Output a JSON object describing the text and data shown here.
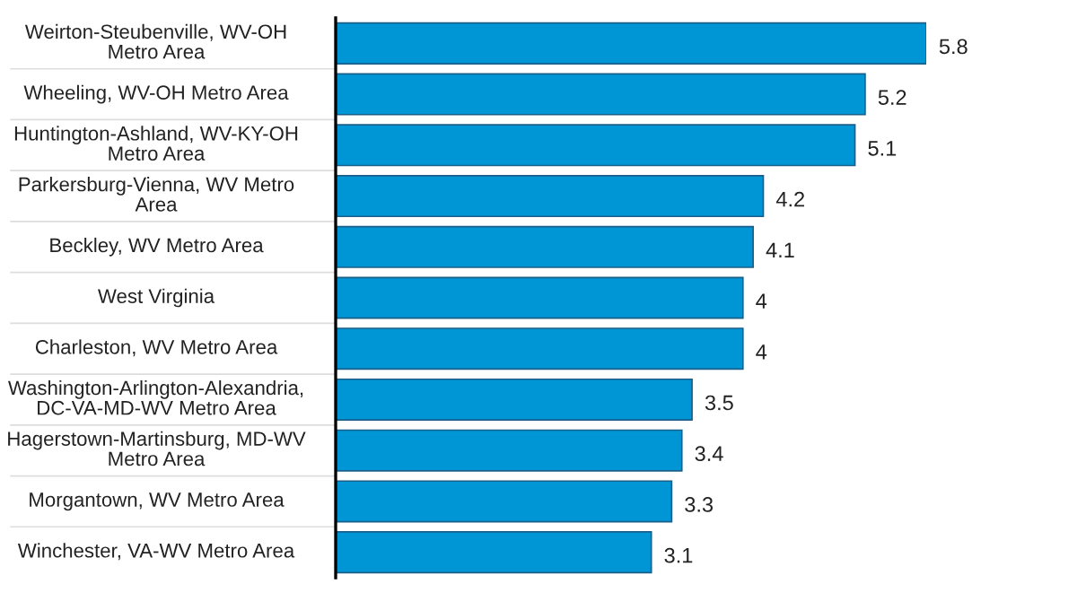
{
  "chart_data": {
    "type": "bar",
    "orientation": "horizontal",
    "categories": [
      "Weirton-Steubenville, WV-OH Metro Area",
      "Wheeling, WV-OH Metro Area",
      "Huntington-Ashland, WV-KY-OH Metro Area",
      "Parkersburg-Vienna, WV Metro Area",
      "Beckley, WV Metro Area",
      "West Virginia",
      "Charleston, WV Metro Area",
      "Washington-Arlington-Alexandria, DC-VA-MD-WV Metro Area",
      "Hagerstown-Martinsburg, MD-WV Metro Area",
      "Morgantown, WV Metro Area",
      "Winchester, VA-WV Metro Area"
    ],
    "values": [
      5.8,
      5.2,
      5.1,
      4.2,
      4.1,
      4,
      4,
      3.5,
      3.4,
      3.3,
      3.1
    ],
    "color": "#0096d6",
    "data_labels": true
  }
}
